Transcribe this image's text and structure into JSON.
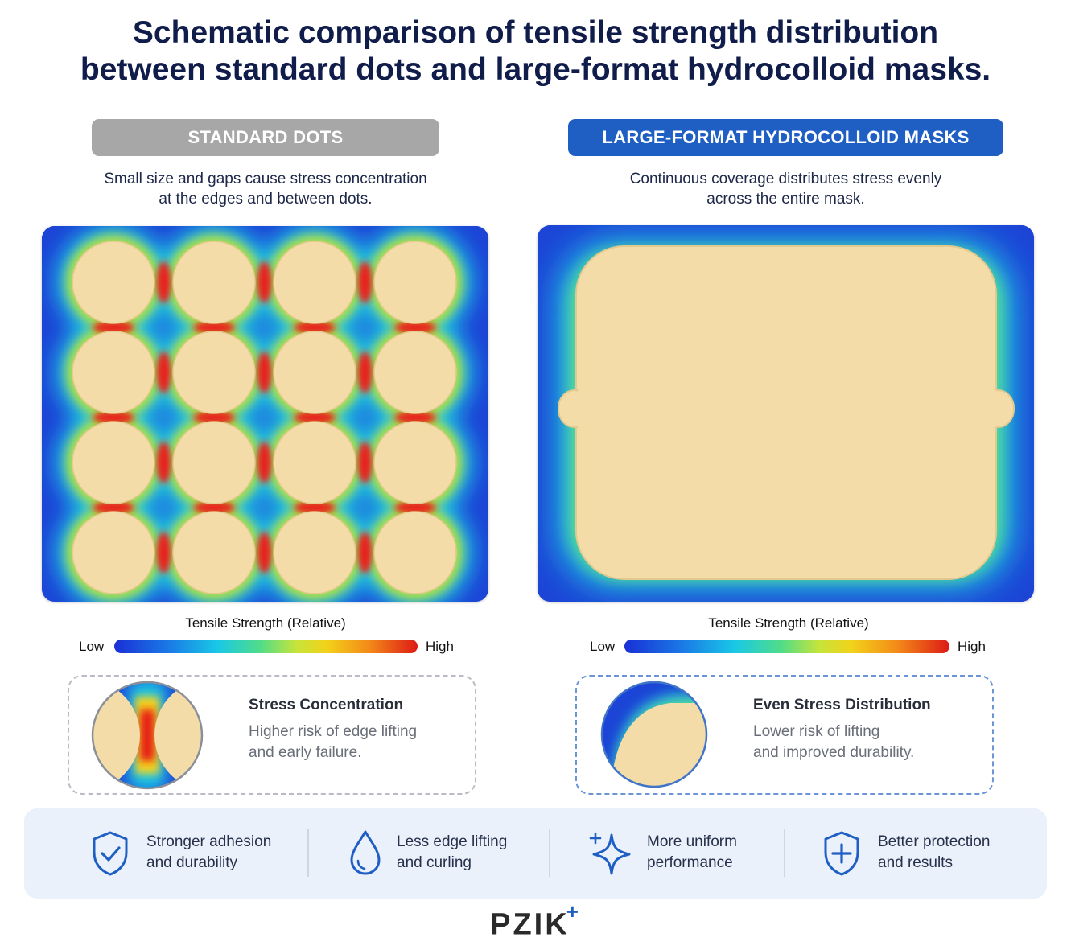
{
  "title_line1": "Schematic comparison of tensile strength distribution",
  "title_line2": "between standard dots and large-format hydrocolloid masks.",
  "left": {
    "label": "STANDARD DOTS",
    "desc_line1": "Small size and gaps cause stress concentration",
    "desc_line2": "at the edges and between dots.",
    "legend_title": "Tensile Strength (Relative)",
    "legend_low": "Low",
    "legend_high": "High",
    "card_title": "Stress Concentration",
    "card_line1": "Higher risk of edge lifting",
    "card_line2": "and early failure."
  },
  "right": {
    "label": "LARGE-FORMAT HYDROCOLLOID MASKS",
    "desc_line1": "Continuous coverage distributes stress evenly",
    "desc_line2": "across the entire mask.",
    "legend_title": "Tensile Strength (Relative)",
    "legend_low": "Low",
    "legend_high": "High",
    "card_title": "Even Stress Distribution",
    "card_line1": "Lower risk of lifting",
    "card_line2": "and improved durability."
  },
  "benefits": [
    {
      "icon": "shield-check-icon",
      "line1": "Stronger adhesion",
      "line2": "and durability"
    },
    {
      "icon": "droplet-icon",
      "line1": "Less edge lifting",
      "line2": "and curling"
    },
    {
      "icon": "sparkle-icon",
      "line1": "More uniform",
      "line2": "performance"
    },
    {
      "icon": "shield-plus-icon",
      "line1": "Better protection",
      "line2": "and results"
    }
  ],
  "brand": "PZIK",
  "brand_mark": "+",
  "colors": {
    "title": "#101c4a",
    "accent_blue": "#1f5fc4",
    "gray_pill": "#a7a7a7",
    "patch": "#f3dca8",
    "low": "#1a2fd6",
    "high": "#dd1a16"
  }
}
